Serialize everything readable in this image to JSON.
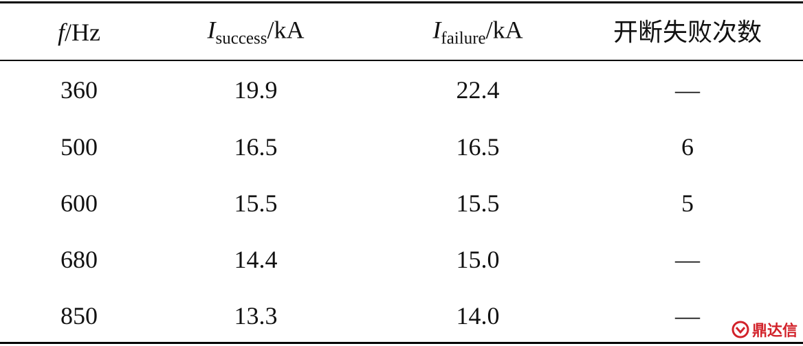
{
  "table": {
    "header": [
      {
        "symbol": "f",
        "unit": "/Hz"
      },
      {
        "symbol": "I",
        "subscript": "success",
        "unit": "/kA"
      },
      {
        "symbol": "I",
        "subscript": "failure",
        "unit": "/kA"
      },
      {
        "text": "开断失败次数"
      }
    ],
    "rows": [
      [
        "360",
        "19.9",
        "22.4",
        "—"
      ],
      [
        "500",
        "16.5",
        "16.5",
        "6"
      ],
      [
        "600",
        "15.5",
        "15.5",
        "5"
      ],
      [
        "680",
        "14.4",
        "15.0",
        "—"
      ],
      [
        "850",
        "13.3",
        "14.0",
        "—"
      ]
    ]
  },
  "watermark": {
    "text": "鼎达信"
  }
}
